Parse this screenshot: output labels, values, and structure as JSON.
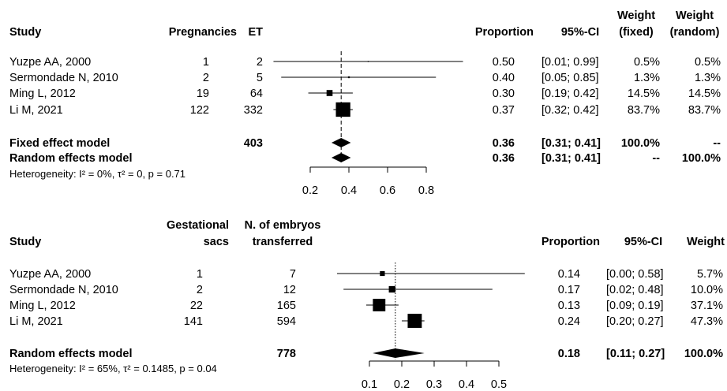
{
  "chart_data": [
    {
      "type": "forest",
      "columns": [
        {
          "lines": [
            "Study"
          ]
        },
        {
          "lines": [
            "Pregnancies"
          ]
        },
        {
          "lines": [
            "ET"
          ]
        },
        {
          "lines": [
            "Proportion"
          ]
        },
        {
          "lines": [
            "95%-CI"
          ]
        },
        {
          "lines": [
            "Weight",
            "(fixed)"
          ]
        },
        {
          "lines": [
            "Weight",
            "(random)"
          ]
        }
      ],
      "studies": [
        {
          "name": "Yuzpe AA, 2000",
          "events": 1,
          "total": 2,
          "proportion": {
            "value": 0.5,
            "label": "0.50"
          },
          "ci": {
            "lower": 0.01,
            "upper": 0.99,
            "label": "[0.01; 0.99]"
          },
          "weights": [
            {
              "value": 0.5,
              "label": "0.5%"
            },
            {
              "value": 0.5,
              "label": "0.5%"
            }
          ]
        },
        {
          "name": "Sermondade N, 2010",
          "events": 2,
          "total": 5,
          "proportion": {
            "value": 0.4,
            "label": "0.40"
          },
          "ci": {
            "lower": 0.05,
            "upper": 0.85,
            "label": "[0.05; 0.85]"
          },
          "weights": [
            {
              "value": 1.3,
              "label": "1.3%"
            },
            {
              "value": 1.3,
              "label": "1.3%"
            }
          ]
        },
        {
          "name": "Ming L, 2012",
          "events": 19,
          "total": 64,
          "proportion": {
            "value": 0.3,
            "label": "0.30"
          },
          "ci": {
            "lower": 0.19,
            "upper": 0.42,
            "label": "[0.19; 0.42]"
          },
          "weights": [
            {
              "value": 14.5,
              "label": "14.5%"
            },
            {
              "value": 14.5,
              "label": "14.5%"
            }
          ]
        },
        {
          "name": "Li M, 2021",
          "events": 122,
          "total": 332,
          "proportion": {
            "value": 0.37,
            "label": "0.37"
          },
          "ci": {
            "lower": 0.32,
            "upper": 0.42,
            "label": "[0.32; 0.42]"
          },
          "weights": [
            {
              "value": 83.7,
              "label": "83.7%"
            },
            {
              "value": 83.7,
              "label": "83.7%"
            }
          ]
        }
      ],
      "summaries": [
        {
          "name": "Fixed effect model",
          "total": 403,
          "proportion": {
            "value": 0.36,
            "label": "0.36"
          },
          "ci": {
            "lower": 0.31,
            "upper": 0.41,
            "label": "[0.31; 0.41]"
          },
          "weights": [
            {
              "value": 100.0,
              "label": "100.0%"
            },
            "--"
          ]
        },
        {
          "name": "Random effects model",
          "proportion": {
            "value": 0.36,
            "label": "0.36"
          },
          "ci": {
            "lower": 0.31,
            "upper": 0.41,
            "label": "[0.31; 0.41]"
          },
          "weights": [
            "--",
            {
              "value": 100.0,
              "label": "100.0%"
            }
          ]
        }
      ],
      "heterogeneity": "Heterogeneity: I² = 0%, τ² = 0, p = 0.71",
      "xlim": [
        0.2,
        0.8
      ],
      "xticks": [
        0.2,
        0.4,
        0.6,
        0.8
      ],
      "reference_style": "dashed",
      "color": "#000000"
    },
    {
      "type": "forest",
      "columns": [
        {
          "lines": [
            "Study"
          ]
        },
        {
          "lines": [
            "Gestational",
            "sacs"
          ]
        },
        {
          "lines": [
            "N. of embryos",
            "transferred"
          ]
        },
        {
          "lines": [
            "Proportion"
          ]
        },
        {
          "lines": [
            "95%-CI"
          ]
        },
        {
          "lines": [
            "Weight"
          ]
        }
      ],
      "studies": [
        {
          "name": "Yuzpe AA, 2000",
          "events": 1,
          "total": 7,
          "proportion": {
            "value": 0.14,
            "label": "0.14"
          },
          "ci": {
            "lower": 0.0,
            "upper": 0.58,
            "label": "[0.00; 0.58]"
          },
          "weights": [
            {
              "value": 5.7,
              "label": "5.7%"
            }
          ]
        },
        {
          "name": "Sermondade N, 2010",
          "events": 2,
          "total": 12,
          "proportion": {
            "value": 0.17,
            "label": "0.17"
          },
          "ci": {
            "lower": 0.02,
            "upper": 0.48,
            "label": "[0.02; 0.48]"
          },
          "weights": [
            {
              "value": 10.0,
              "label": "10.0%"
            }
          ]
        },
        {
          "name": "Ming L, 2012",
          "events": 22,
          "total": 165,
          "proportion": {
            "value": 0.13,
            "label": "0.13"
          },
          "ci": {
            "lower": 0.09,
            "upper": 0.19,
            "label": "[0.09; 0.19]"
          },
          "weights": [
            {
              "value": 37.1,
              "label": "37.1%"
            }
          ]
        },
        {
          "name": "Li M, 2021",
          "events": 141,
          "total": 594,
          "proportion": {
            "value": 0.24,
            "label": "0.24"
          },
          "ci": {
            "lower": 0.2,
            "upper": 0.27,
            "label": "[0.20; 0.27]"
          },
          "weights": [
            {
              "value": 47.3,
              "label": "47.3%"
            }
          ]
        }
      ],
      "summaries": [
        {
          "name": "Random effects model",
          "total": 778,
          "proportion": {
            "value": 0.18,
            "label": "0.18"
          },
          "ci": {
            "lower": 0.11,
            "upper": 0.27,
            "label": "[0.11; 0.27]"
          },
          "weights": [
            {
              "value": 100.0,
              "label": "100.0%"
            }
          ]
        }
      ],
      "heterogeneity": "Heterogeneity: I² = 65%, τ² = 0.1485, p = 0.04",
      "xlim": [
        0.1,
        0.5
      ],
      "xticks": [
        0.1,
        0.2,
        0.3,
        0.4,
        0.5
      ],
      "reference_style": "dotted",
      "color": "#000000"
    }
  ]
}
